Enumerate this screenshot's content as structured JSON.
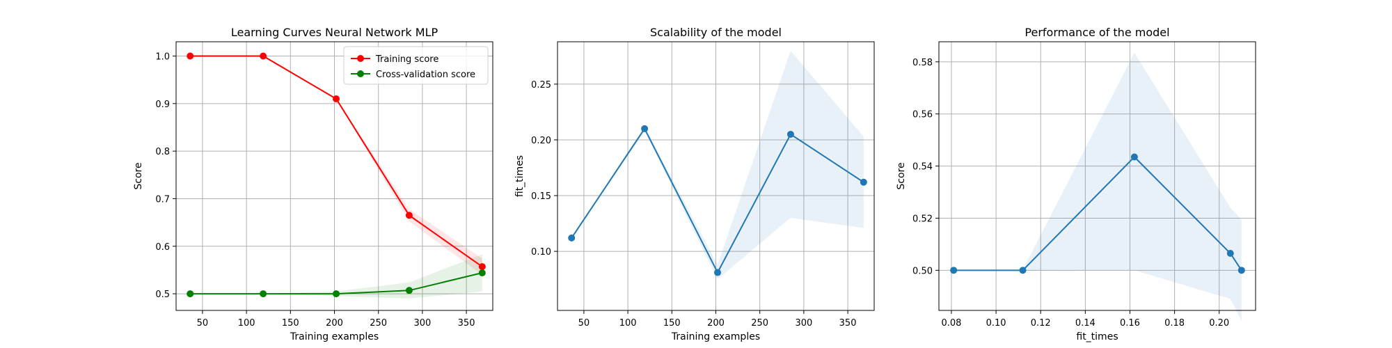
{
  "chart_data": [
    {
      "type": "line",
      "title": "Learning Curves Neural Network MLP",
      "xlabel": "Training examples",
      "ylabel": "Score",
      "xlim": [
        20,
        380
      ],
      "ylim": [
        0.465,
        1.03
      ],
      "xticks": [
        50,
        100,
        150,
        200,
        250,
        300,
        350
      ],
      "yticks": [
        0.5,
        0.6,
        0.7,
        0.8,
        0.9,
        1.0
      ],
      "ytick_labels": [
        "0.5",
        "0.6",
        "0.7",
        "0.8",
        "0.9",
        "1.0"
      ],
      "grid": true,
      "legend": "top-right",
      "x": [
        36,
        119,
        202,
        285,
        368
      ],
      "series": [
        {
          "name": "Training score",
          "color": "#ff0000",
          "values": [
            1.0,
            1.0,
            0.91,
            0.665,
            0.557
          ],
          "band_lower": [
            1.0,
            1.0,
            0.91,
            0.652,
            0.54
          ],
          "band_upper": [
            1.0,
            1.0,
            0.91,
            0.678,
            0.574
          ]
        },
        {
          "name": "Cross-validation score",
          "color": "#008000",
          "values": [
            0.5,
            0.5,
            0.5,
            0.507,
            0.544
          ],
          "band_lower": [
            0.5,
            0.5,
            0.495,
            0.49,
            0.505
          ],
          "band_upper": [
            0.5,
            0.5,
            0.505,
            0.524,
            0.583
          ]
        }
      ]
    },
    {
      "type": "line",
      "title": "Scalability of the model",
      "xlabel": "Training examples",
      "ylabel": "fit_times",
      "xlim": [
        20,
        380
      ],
      "ylim": [
        0.047,
        0.288
      ],
      "xticks": [
        50,
        100,
        150,
        200,
        250,
        300,
        350
      ],
      "yticks": [
        0.1,
        0.15,
        0.2,
        0.25
      ],
      "ytick_labels": [
        "0.10",
        "0.15",
        "0.20",
        "0.25"
      ],
      "grid": true,
      "x": [
        36,
        119,
        202,
        285,
        368
      ],
      "series": [
        {
          "color": "#1f77b4",
          "values": [
            0.112,
            0.21,
            0.081,
            0.205,
            0.162
          ],
          "band_lower": [
            0.112,
            0.208,
            0.075,
            0.13,
            0.121
          ],
          "band_upper": [
            0.112,
            0.212,
            0.088,
            0.28,
            0.203
          ]
        }
      ]
    },
    {
      "type": "line",
      "title": "Performance of the model",
      "xlabel": "fit_times",
      "ylabel": "Score",
      "xlim": [
        0.0744,
        0.2163
      ],
      "ylim": [
        0.4846,
        0.5877
      ],
      "xticks": [
        0.08,
        0.1,
        0.12,
        0.14,
        0.16,
        0.18,
        0.2
      ],
      "xtick_labels": [
        "0.08",
        "0.10",
        "0.12",
        "0.14",
        "0.16",
        "0.18",
        "0.20"
      ],
      "yticks": [
        0.5,
        0.52,
        0.54,
        0.56,
        0.58
      ],
      "ytick_labels": [
        "0.50",
        "0.52",
        "0.54",
        "0.56",
        "0.58"
      ],
      "grid": true,
      "x": [
        0.081,
        0.112,
        0.162,
        0.205,
        0.21
      ],
      "series": [
        {
          "color": "#1f77b4",
          "values": [
            0.5,
            0.5,
            0.5435,
            0.5065,
            0.5
          ],
          "band_lower": [
            0.5,
            0.4998,
            0.5,
            0.489,
            0.4805
          ],
          "band_upper": [
            0.5,
            0.5002,
            0.5835,
            0.524,
            0.5195
          ]
        }
      ]
    }
  ]
}
